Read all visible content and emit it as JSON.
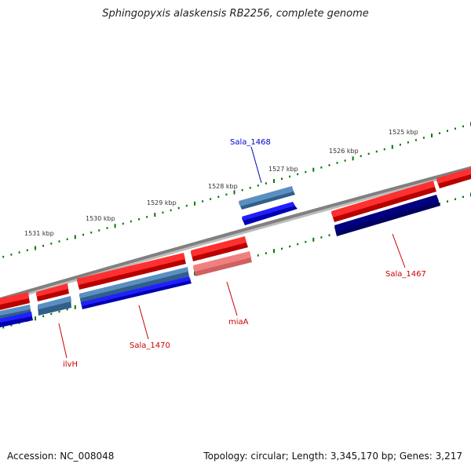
{
  "title": "Sphingopyxis alaskensis RB2256, complete genome",
  "footer": {
    "accession": "Accession: NC_008048",
    "summary": "Topology: circular; Length: 3,345,170 bp; Genes: 3,217"
  },
  "scale_labels": [
    "1525 kbp",
    "1526 kbp",
    "1527 kbp",
    "1528 kbp",
    "1529 kbp",
    "1530 kbp",
    "1531 kbp"
  ],
  "gene_labels": [
    {
      "text": "Sala_1468",
      "color": "#0000cc"
    },
    {
      "text": "Sala_1467",
      "color": "#cc0000"
    },
    {
      "text": "miaA",
      "color": "#cc0000"
    },
    {
      "text": "Sala_1470",
      "color": "#cc0000"
    },
    {
      "text": "ilvH",
      "color": "#cc0000"
    }
  ],
  "colors": {
    "backbone": "#808080",
    "tick": "#007a00",
    "forward_feature": "#ff0000",
    "forward_feature_light": "#f08080",
    "reverse_feature": "#0000ff",
    "reverse_feature_steel": "#4682b4",
    "reverse_feature_navy": "#000080",
    "scale_label": "#333333"
  }
}
